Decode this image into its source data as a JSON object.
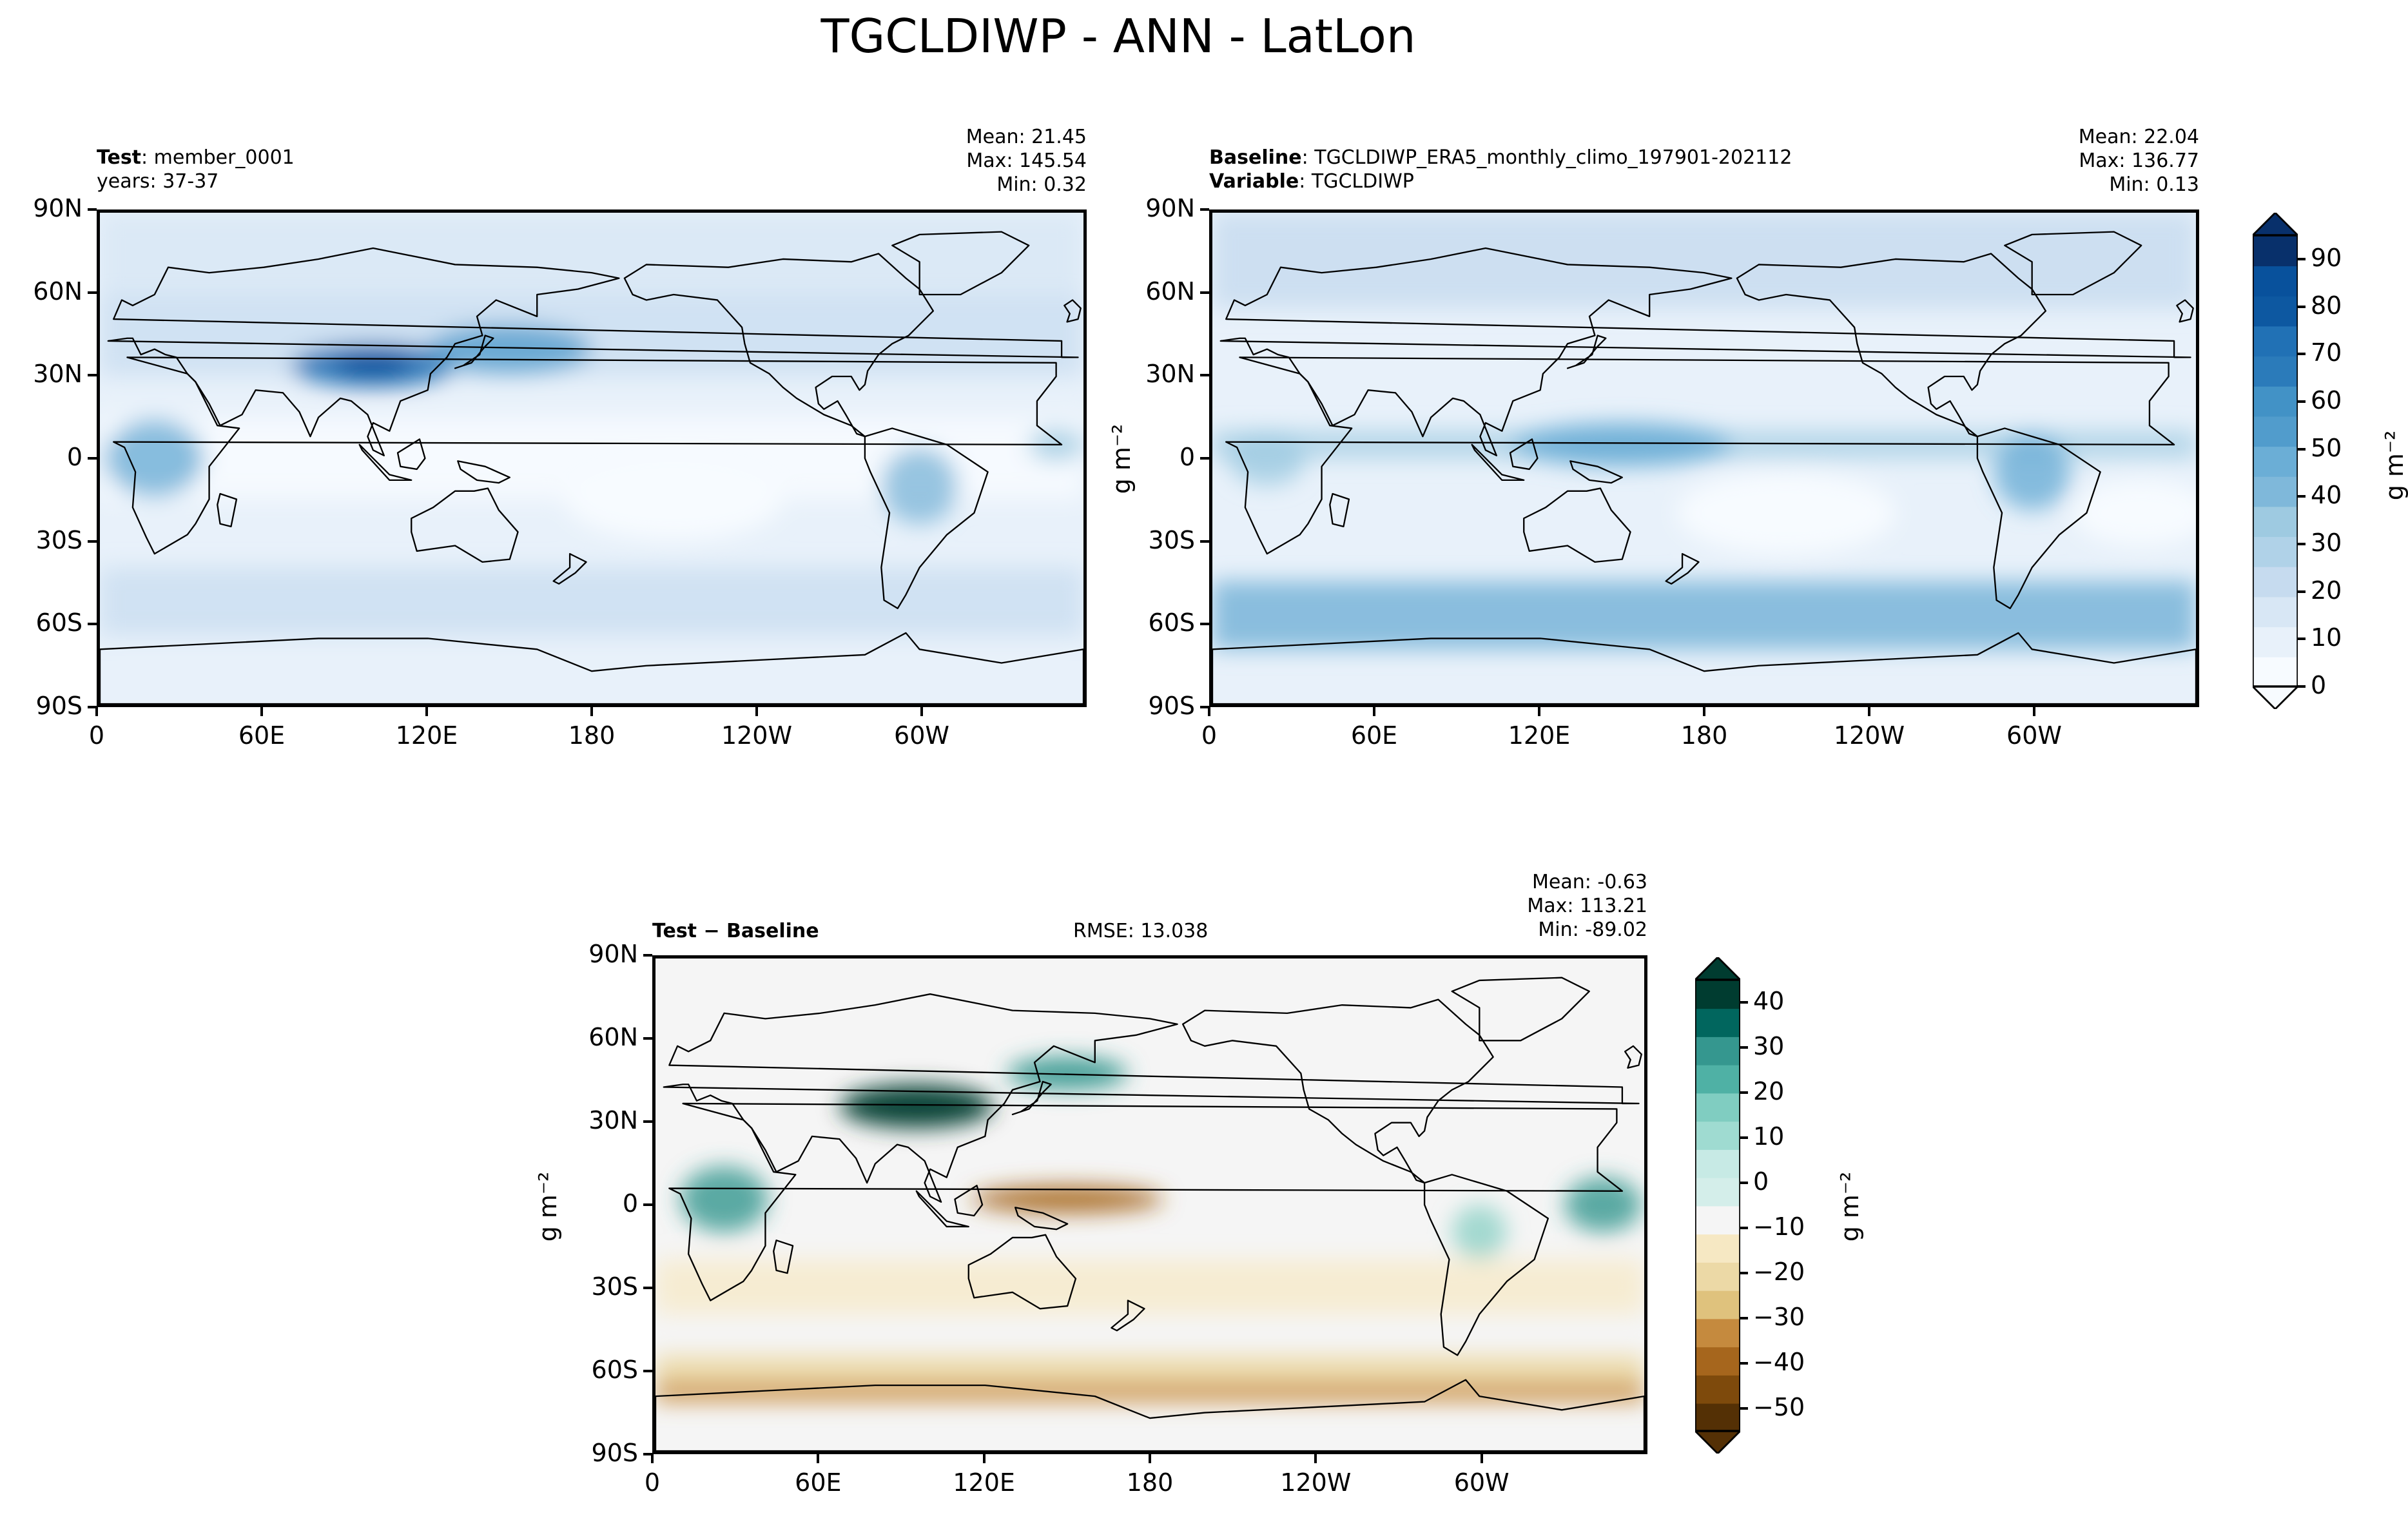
{
  "figure_title": "TGCLDIWP - ANN - LatLon",
  "colors": {
    "sequential": [
      "#f7fbff",
      "#e8f1fa",
      "#d8e7f5",
      "#c6dbef",
      "#b0d2e8",
      "#9ecae1",
      "#7fb8da",
      "#6baed6",
      "#519ccc",
      "#4292c6",
      "#2b7bba",
      "#2171b5",
      "#0d58a1",
      "#08519c",
      "#08306b"
    ],
    "diverging": [
      "#543005",
      "#7e4a0c",
      "#a6661d",
      "#c58a3e",
      "#dfc27d",
      "#ecd9a6",
      "#f6e8c3",
      "#f5f5f5",
      "#d4eeea",
      "#c7eae5",
      "#9fdbd1",
      "#80cdc1",
      "#4fb1a5",
      "#35978f",
      "#01665e",
      "#003c30"
    ]
  },
  "chart_data": [
    {
      "type": "heatmap",
      "panel": "test",
      "label_bold": "Test",
      "label_rest": ": member_0001",
      "subtitle": "years: 37-37",
      "stats": {
        "mean": "Mean: 21.45",
        "max": "Max: 145.54",
        "min": "Min:  0.32"
      },
      "xticks": [
        "0",
        "60E",
        "120E",
        "180",
        "120W",
        "60W"
      ],
      "yticks": [
        "90N",
        "60N",
        "30N",
        "0",
        "30S",
        "60S",
        "90S"
      ],
      "xlim": [
        0,
        360
      ],
      "ylim": [
        -90,
        90
      ],
      "units": "g m⁻²"
    },
    {
      "type": "heatmap",
      "panel": "baseline",
      "label_bold": "Baseline",
      "label_rest": ": TGCLDIWP_ERA5_monthly_climo_197901-202112",
      "label2_bold": "Variable",
      "label2_rest": ": TGCLDIWP",
      "stats": {
        "mean": "Mean: 22.04",
        "max": "Max: 136.77",
        "min": "Min:  0.13"
      },
      "xticks": [
        "0",
        "60E",
        "120E",
        "180",
        "120W",
        "60W"
      ],
      "yticks": [
        "90N",
        "60N",
        "30N",
        "0",
        "30S",
        "60S",
        "90S"
      ],
      "ylabel": "g m⁻²",
      "colorbar": {
        "ticks": [
          0,
          10,
          20,
          30,
          40,
          50,
          60,
          70,
          80,
          90
        ],
        "range": [
          0,
          95
        ],
        "label": "g m⁻²"
      }
    },
    {
      "type": "heatmap",
      "panel": "difference",
      "label_bold": "Test − Baseline",
      "rmse": "RMSE: 13.038",
      "stats": {
        "mean": "Mean: -0.63",
        "max": "Max: 113.21",
        "min": "Min: -89.02"
      },
      "xticks": [
        "0",
        "60E",
        "120E",
        "180",
        "120W",
        "60W"
      ],
      "yticks": [
        "90N",
        "60N",
        "30N",
        "0",
        "30S",
        "60S",
        "90S"
      ],
      "ylabel": "g m⁻²",
      "colorbar": {
        "ticks": [
          "40",
          "30",
          "20",
          "10",
          "0",
          "−10",
          "−20",
          "−30",
          "−40",
          "−50"
        ],
        "range": [
          -55,
          45
        ],
        "label": "g m⁻²"
      }
    }
  ]
}
